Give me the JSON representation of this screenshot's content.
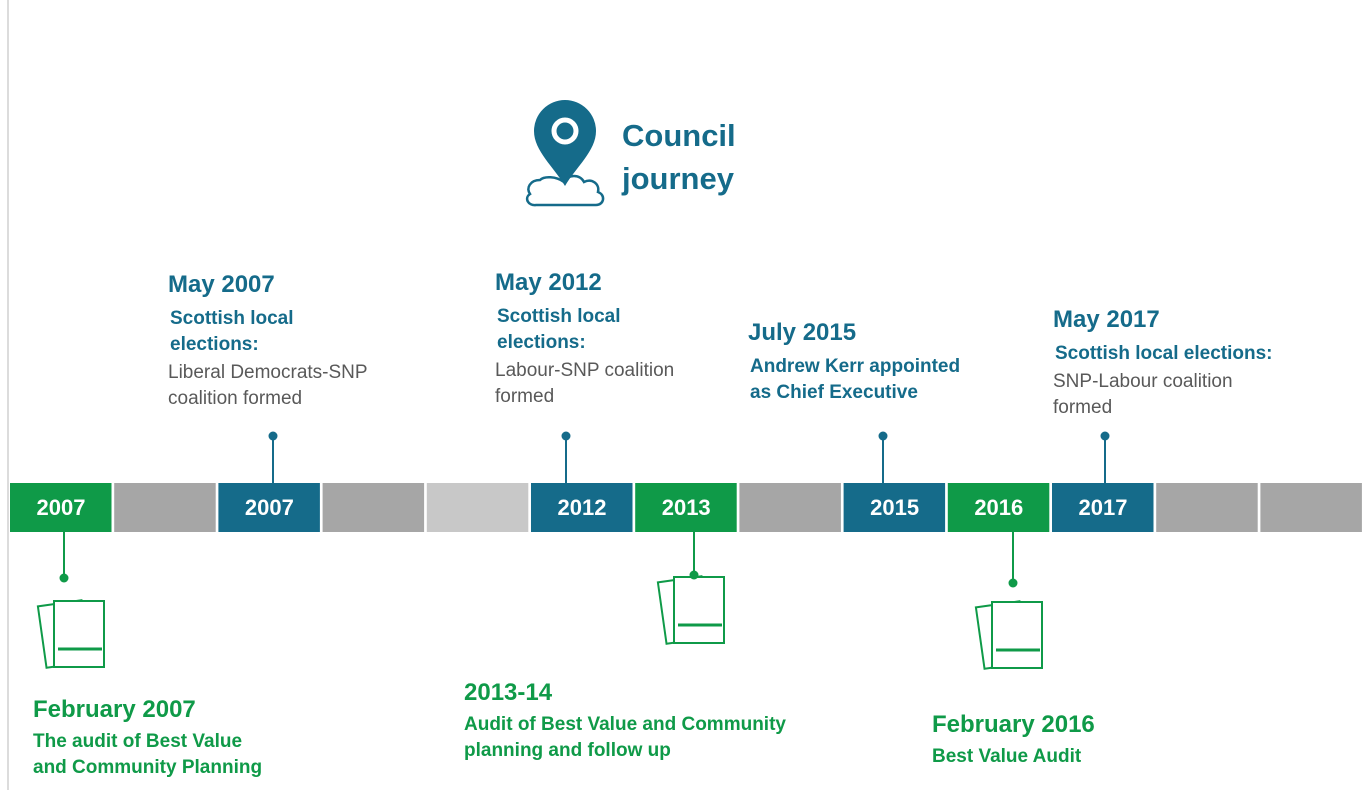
{
  "title": {
    "lines": [
      "Council",
      "journey"
    ]
  },
  "timeline": [
    {
      "label": "2007",
      "kind": "green"
    },
    {
      "kind": "gray"
    },
    {
      "label": "2007",
      "kind": "blue"
    },
    {
      "kind": "gray"
    },
    {
      "kind": "light"
    },
    {
      "label": "2012",
      "kind": "blue"
    },
    {
      "label": "2013",
      "kind": "green"
    },
    {
      "kind": "gray"
    },
    {
      "label": "2015",
      "kind": "blue"
    },
    {
      "label": "2016",
      "kind": "green"
    },
    {
      "label": "2017",
      "kind": "blue"
    },
    {
      "kind": "gray"
    },
    {
      "kind": "gray"
    }
  ],
  "events_above": [
    {
      "heading": "May 2007",
      "subheading": [
        "Scottish local",
        "elections:"
      ],
      "body": [
        "Liberal Democrats-SNP",
        "coalition formed"
      ]
    },
    {
      "heading": "May 2012",
      "subheading": [
        "Scottish local",
        "elections:"
      ],
      "body": [
        "Labour-SNP coalition",
        "formed"
      ]
    },
    {
      "heading": "July 2015",
      "subheading": [
        "Andrew Kerr appointed",
        "as Chief Executive"
      ],
      "body": []
    },
    {
      "heading": "May 2017",
      "subheading": [
        "Scottish local elections:"
      ],
      "body": [
        "SNP-Labour coalition",
        "formed"
      ]
    }
  ],
  "events_below": [
    {
      "heading": "February 2007",
      "body": [
        "The audit of Best Value",
        "and Community Planning"
      ]
    },
    {
      "heading": "2013-14",
      "body": [
        "Audit of Best Value and Community",
        "planning and follow up"
      ]
    },
    {
      "heading": "February 2016",
      "body": [
        "Best Value Audit"
      ]
    }
  ]
}
